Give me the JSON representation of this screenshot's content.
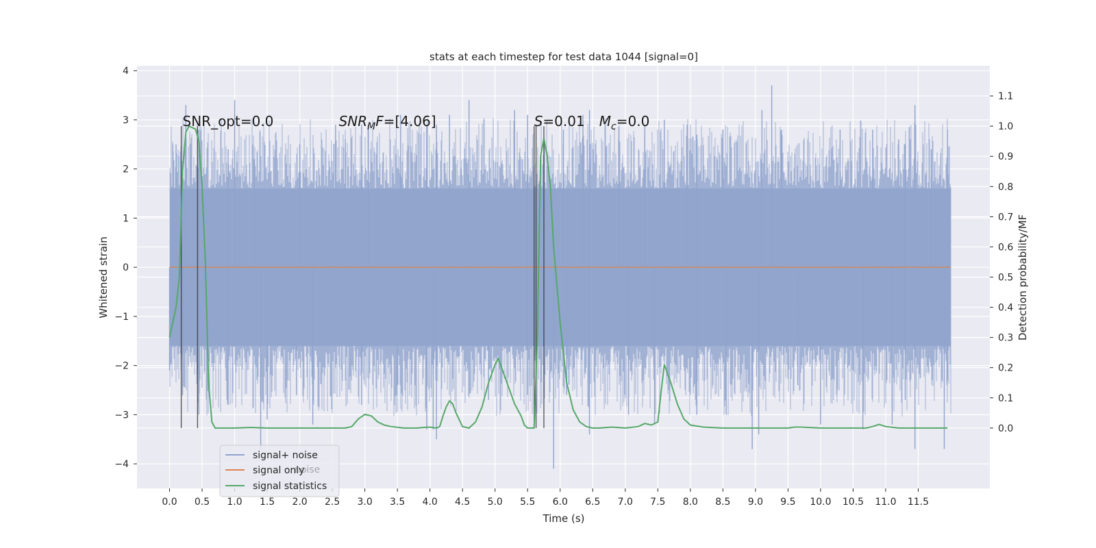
{
  "chart_data": {
    "type": "line",
    "title": "stats at each timestep for test data 1044 [signal=0]",
    "xlabel": "Time (s)",
    "ylabel_left": "Whitened strain",
    "ylabel_right": "Detection probability/MF",
    "xlim": [
      -0.5,
      12.6
    ],
    "ylim_left": [
      -4.5,
      4.1
    ],
    "ylim_right": [
      -0.2,
      1.2
    ],
    "x_ticks": [
      0.0,
      0.5,
      1.0,
      1.5,
      2.0,
      2.5,
      3.0,
      3.5,
      4.0,
      4.5,
      5.0,
      5.5,
      6.0,
      6.5,
      7.0,
      7.5,
      8.0,
      8.5,
      9.0,
      9.5,
      10.0,
      10.5,
      11.0,
      11.5
    ],
    "x_tick_labels": [
      "0.0",
      "0.5",
      "1.0",
      "1.5",
      "2.0",
      "2.5",
      "3.0",
      "3.5",
      "4.0",
      "4.5",
      "5.0",
      "5.5",
      "6.0",
      "6.5",
      "7.0",
      "7.5",
      "8.0",
      "8.5",
      "9.0",
      "9.5",
      "10.0",
      "10.5",
      "11.0",
      "11.5"
    ],
    "y_left_ticks": [
      -4,
      -3,
      -2,
      -1,
      0,
      1,
      2,
      3,
      4
    ],
    "y_left_tick_labels": [
      "−4",
      "−3",
      "−2",
      "−1",
      "0",
      "1",
      "2",
      "3",
      "4"
    ],
    "y_right_ticks": [
      0.0,
      0.1,
      0.2,
      0.3,
      0.4,
      0.5,
      0.6,
      0.7,
      0.8,
      0.9,
      1.0,
      1.1
    ],
    "y_right_tick_labels": [
      "0.0",
      "0.1",
      "0.2",
      "0.3",
      "0.4",
      "0.5",
      "0.6",
      "0.7",
      "0.8",
      "0.9",
      "1.0",
      "1.1"
    ],
    "grid": true,
    "legend_position": "lower-left",
    "series": [
      {
        "name": "signal+ noise",
        "axis": "left",
        "color": "#8fa3cc",
        "x_range": [
          0.0,
          12.0
        ],
        "envelope": {
          "typical": 1.6,
          "peaks_max": 3.7,
          "troughs_min": -4.1
        },
        "peaks": [
          [
            0.05,
            2.5
          ],
          [
            0.1,
            2.5
          ],
          [
            0.25,
            3.3
          ],
          [
            0.45,
            2.8
          ],
          [
            0.9,
            2.4
          ],
          [
            1.0,
            3.4
          ],
          [
            1.3,
            2.2
          ],
          [
            2.0,
            2.5
          ],
          [
            2.55,
            2.9
          ],
          [
            2.7,
            2.6
          ],
          [
            2.95,
            2.9
          ],
          [
            3.05,
            2.9
          ],
          [
            3.55,
            3.1
          ],
          [
            3.95,
            2.9
          ],
          [
            4.1,
            2.9
          ],
          [
            4.3,
            3.1
          ],
          [
            4.6,
            3.4
          ],
          [
            5.3,
            3.2
          ],
          [
            5.5,
            3.1
          ],
          [
            6.05,
            2.8
          ],
          [
            6.35,
            3.1
          ],
          [
            6.45,
            3.2
          ],
          [
            6.9,
            2.6
          ],
          [
            7.3,
            2.9
          ],
          [
            7.6,
            3.0
          ],
          [
            7.95,
            2.9
          ],
          [
            8.1,
            2.7
          ],
          [
            8.5,
            2.8
          ],
          [
            9.1,
            3.2
          ],
          [
            9.25,
            3.7
          ],
          [
            9.4,
            2.8
          ],
          [
            10.3,
            2.8
          ],
          [
            10.8,
            2.8
          ],
          [
            11.2,
            2.6
          ],
          [
            11.3,
            2.5
          ],
          [
            11.45,
            3.3
          ],
          [
            11.7,
            2.4
          ],
          [
            11.95,
            2.8
          ]
        ],
        "troughs": [
          [
            0.0,
            -2.1
          ],
          [
            0.2,
            -2.6
          ],
          [
            0.45,
            -3.0
          ],
          [
            0.9,
            -2.8
          ],
          [
            1.4,
            -3.7
          ],
          [
            1.5,
            -3.1
          ],
          [
            1.95,
            -2.6
          ],
          [
            2.2,
            -3.2
          ],
          [
            2.95,
            -2.8
          ],
          [
            3.5,
            -2.4
          ],
          [
            3.95,
            -3.3
          ],
          [
            4.05,
            -3.3
          ],
          [
            4.1,
            -3.5
          ],
          [
            4.9,
            -2.7
          ],
          [
            5.5,
            -2.6
          ],
          [
            5.9,
            -4.1
          ],
          [
            6.1,
            -2.6
          ],
          [
            6.45,
            -3.4
          ],
          [
            7.05,
            -3.0
          ],
          [
            7.45,
            -3.2
          ],
          [
            8.1,
            -3.0
          ],
          [
            8.55,
            -3.0
          ],
          [
            8.95,
            -3.7
          ],
          [
            9.05,
            -3.4
          ],
          [
            9.65,
            -2.4
          ],
          [
            10.0,
            -3.2
          ],
          [
            10.65,
            -3.3
          ],
          [
            11.1,
            -3.2
          ],
          [
            11.3,
            -2.7
          ],
          [
            11.45,
            -3.7
          ],
          [
            11.9,
            -3.7
          ],
          [
            11.95,
            -2.3
          ]
        ]
      },
      {
        "name": "signal only",
        "axis": "left",
        "color": "#dd8452",
        "x": [
          0.0,
          12.0
        ],
        "y": [
          0.0,
          0.0
        ]
      },
      {
        "name": "signal statistics",
        "axis": "right",
        "color": "#55a868",
        "x": [
          0.0,
          0.1,
          0.15,
          0.2,
          0.25,
          0.3,
          0.4,
          0.45,
          0.5,
          0.55,
          0.6,
          0.65,
          0.7,
          0.75,
          1.0,
          1.25,
          1.5,
          2.0,
          2.5,
          2.7,
          2.8,
          2.9,
          3.0,
          3.1,
          3.2,
          3.3,
          3.4,
          3.6,
          3.8,
          3.9,
          4.0,
          4.1,
          4.15,
          4.2,
          4.25,
          4.3,
          4.35,
          4.4,
          4.5,
          4.6,
          4.7,
          4.8,
          4.9,
          5.0,
          5.05,
          5.1,
          5.2,
          5.3,
          5.4,
          5.45,
          5.5,
          5.55,
          5.6,
          5.65,
          5.7,
          5.75,
          5.8,
          5.85,
          5.9,
          6.0,
          6.1,
          6.2,
          6.3,
          6.4,
          6.5,
          6.6,
          6.8,
          7.0,
          7.2,
          7.3,
          7.4,
          7.5,
          7.55,
          7.6,
          7.7,
          7.8,
          7.9,
          8.0,
          8.2,
          8.5,
          9.0,
          9.5,
          9.6,
          9.7,
          10.0,
          10.5,
          10.7,
          10.8,
          10.9,
          11.0,
          11.2,
          11.4,
          11.6,
          11.8,
          11.95
        ],
        "y": [
          0.3,
          0.4,
          0.5,
          0.85,
          0.98,
          1.0,
          0.99,
          0.95,
          0.8,
          0.55,
          0.15,
          0.02,
          0.0,
          0.0,
          0.0,
          0.002,
          0.0,
          0.0,
          0.0,
          0.0,
          0.005,
          0.03,
          0.045,
          0.04,
          0.02,
          0.01,
          0.005,
          0.0,
          0.0,
          0.002,
          0.003,
          0.0,
          0.005,
          0.04,
          0.07,
          0.09,
          0.08,
          0.05,
          0.005,
          0.0,
          0.02,
          0.07,
          0.15,
          0.21,
          0.23,
          0.2,
          0.14,
          0.08,
          0.04,
          0.01,
          0.0,
          0.0,
          0.0,
          0.3,
          0.9,
          0.96,
          0.9,
          0.8,
          0.6,
          0.35,
          0.15,
          0.06,
          0.02,
          0.005,
          0.0,
          0.0,
          0.003,
          0.0,
          0.005,
          0.015,
          0.01,
          0.02,
          0.12,
          0.21,
          0.15,
          0.08,
          0.03,
          0.01,
          0.003,
          0.0,
          0.0,
          0.0,
          0.003,
          0.003,
          0.0,
          0.0,
          0.0,
          0.005,
          0.012,
          0.005,
          0.0,
          0.0,
          0.0,
          0.0,
          0.0
        ]
      }
    ],
    "vertical_lines": [
      0.18,
      0.43,
      5.6,
      5.63,
      5.75
    ],
    "vlines_range_right": [
      0.0,
      1.0
    ],
    "annotations": [
      {
        "text_main": "SNR_opt=0.0",
        "x": 0.2
      },
      {
        "italic": "SNR",
        "sub": "M",
        "italic2": "F",
        "rest": "=[4.06]",
        "x": 2.6
      },
      {
        "italic": "S",
        "rest": "=0.01",
        "x": 5.6
      },
      {
        "italic": "M",
        "sub": "c",
        "rest": "=0.0",
        "x": 6.6
      }
    ],
    "annotation_y_right": 1.0,
    "legend_overlap_text": "noise"
  }
}
